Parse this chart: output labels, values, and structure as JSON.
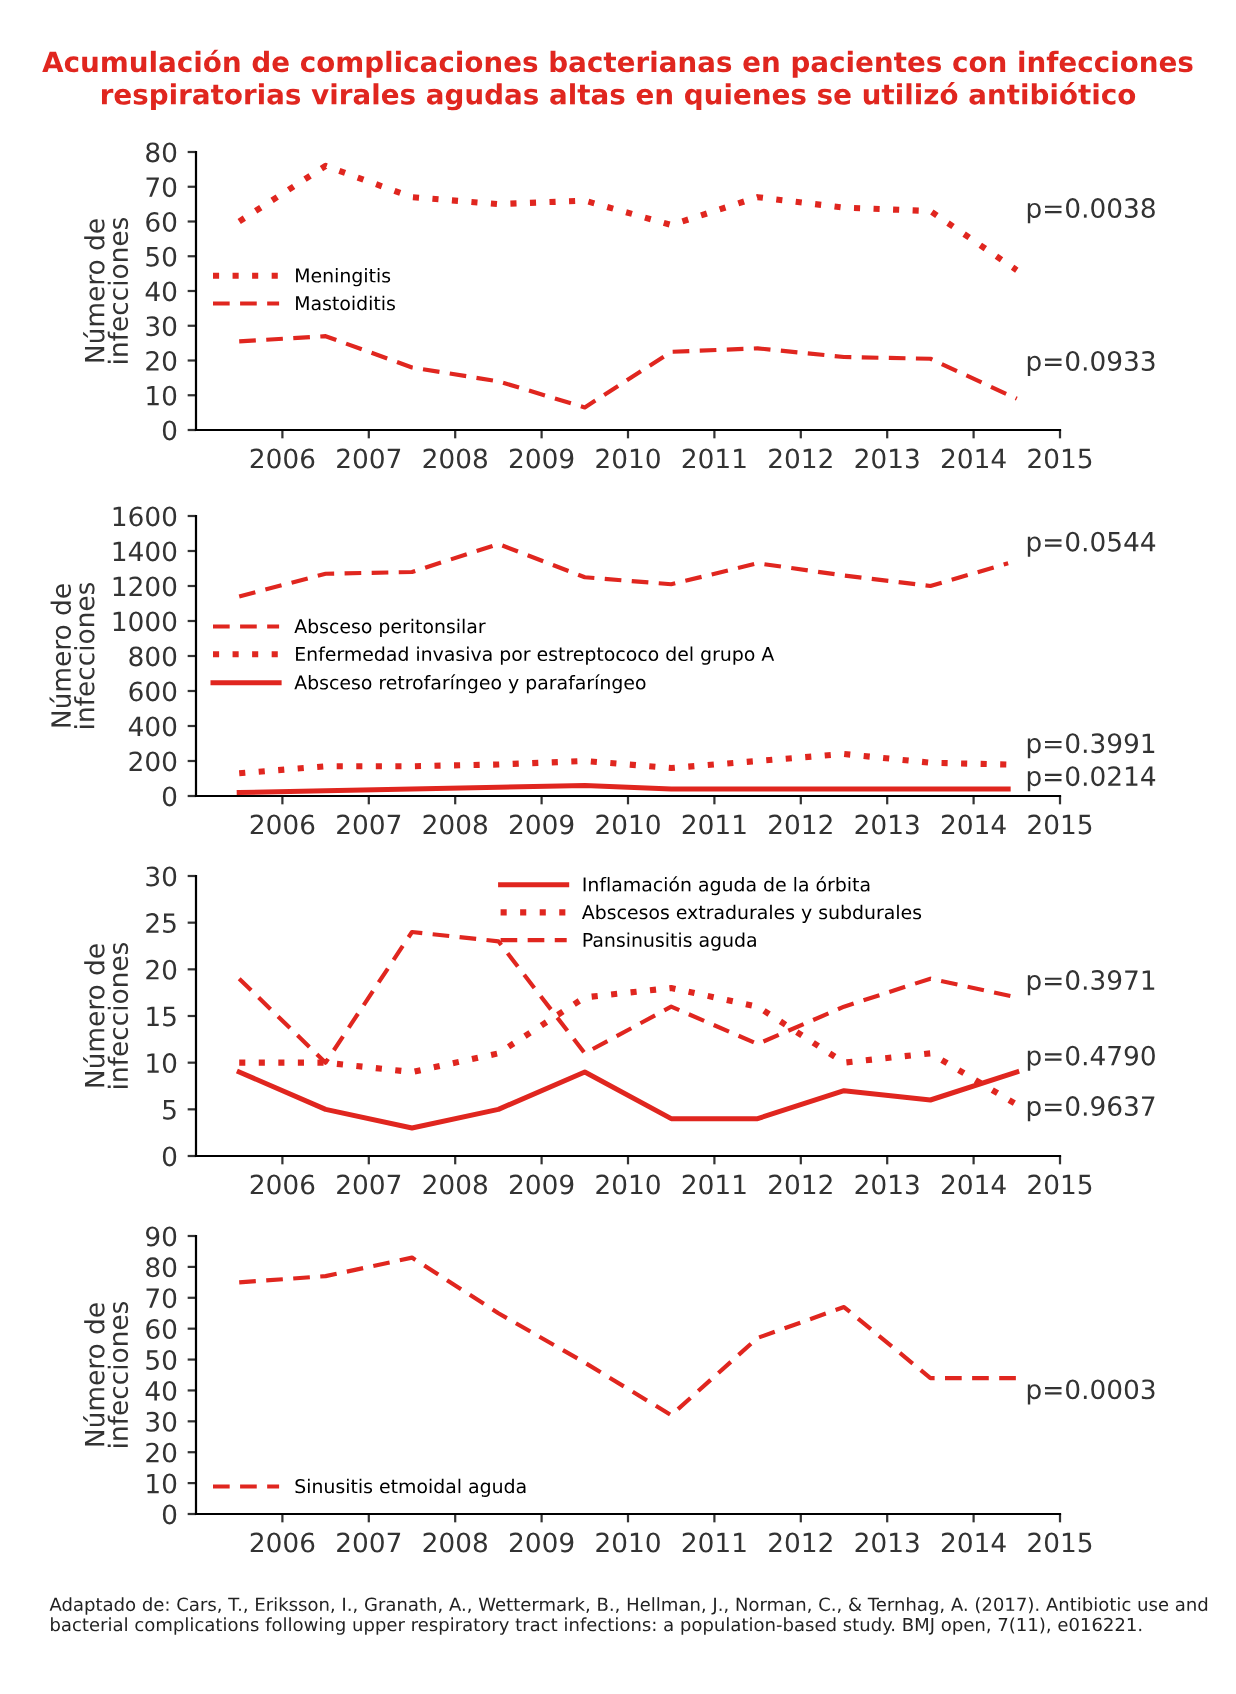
{
  "chart_data": [
    {
      "type": "line",
      "title": "Acumulación de complicaciones bacterianas en pacientes con infecciones respiratorias virales agudas altas en quienes se utilizó antibiótico",
      "ylabel": "Número de\ninfecciones",
      "x": [
        2005.5,
        2006.5,
        2007.5,
        2008.5,
        2009.5,
        2010.5,
        2011.5,
        2012.5,
        2013.5,
        2014.5
      ],
      "xlim": [
        2005,
        2015
      ],
      "xticks": [
        2006,
        2007,
        2008,
        2009,
        2010,
        2011,
        2012,
        2013,
        2014,
        2015
      ],
      "ylim": [
        0,
        80
      ],
      "yticks": [
        0,
        10,
        20,
        30,
        40,
        50,
        60,
        70,
        80
      ],
      "grid": false,
      "legend": "center left",
      "series": [
        {
          "name": "Meningitis",
          "color": "#e0261f",
          "line_style": "dotted",
          "values": [
            60,
            76,
            67,
            65,
            66,
            59,
            67,
            64,
            63,
            46
          ]
        },
        {
          "name": "Mastoiditis",
          "color": "#e0261f",
          "line_style": "dashed",
          "values": [
            25.5,
            27,
            18,
            14,
            6.5,
            22.5,
            23.5,
            21,
            20.5,
            9
          ]
        }
      ],
      "annotations": [
        "p=0.0038",
        "p=0.0933"
      ]
    },
    {
      "type": "line",
      "ylabel": "Número de\ninfecciones",
      "x": [
        2005.5,
        2006.5,
        2007.5,
        2008.5,
        2009.5,
        2010.5,
        2011.5,
        2012.5,
        2013.5,
        2014.4
      ],
      "xlim": [
        2005,
        2015
      ],
      "xticks": [
        2006,
        2007,
        2008,
        2009,
        2010,
        2011,
        2012,
        2013,
        2014,
        2015
      ],
      "ylim": [
        0,
        1600
      ],
      "yticks": [
        0,
        200,
        400,
        600,
        800,
        1000,
        1200,
        1400,
        1600
      ],
      "grid": false,
      "legend": "center left",
      "series": [
        {
          "name": "Absceso peritonsilar",
          "color": "#e0261f",
          "line_style": "dashed",
          "values": [
            1140,
            1270,
            1280,
            1440,
            1250,
            1210,
            1330,
            1260,
            1200,
            1330
          ]
        },
        {
          "name": "Enfermedad invasiva por estreptococo del grupo A",
          "color": "#e0261f",
          "line_style": "dotted",
          "values": [
            130,
            170,
            170,
            180,
            200,
            160,
            200,
            240,
            190,
            180
          ]
        },
        {
          "name": "Absceso retrofaríngeo y parafaríngeo",
          "color": "#e0261f",
          "line_style": "solid",
          "values": [
            20,
            30,
            40,
            50,
            60,
            40,
            40,
            40,
            40,
            40
          ]
        }
      ],
      "annotations": [
        "p=0.0544",
        "p=0.3991",
        "p=0.0214"
      ]
    },
    {
      "type": "line",
      "ylabel": "Número de\ninfecciones",
      "x": [
        2005.5,
        2006.5,
        2007.5,
        2008.5,
        2009.5,
        2010.5,
        2011.5,
        2012.5,
        2013.5,
        2014.5
      ],
      "xlim": [
        2005,
        2015
      ],
      "xticks": [
        2006,
        2007,
        2008,
        2009,
        2010,
        2011,
        2012,
        2013,
        2014,
        2015
      ],
      "ylim": [
        0,
        30
      ],
      "yticks": [
        0,
        5,
        10,
        15,
        20,
        25,
        30
      ],
      "grid": false,
      "legend": "upper right",
      "series": [
        {
          "name": "Inflamación aguda de la órbita",
          "color": "#e0261f",
          "line_style": "solid",
          "values": [
            9,
            5,
            3,
            5,
            9,
            4,
            4,
            7,
            6,
            9
          ]
        },
        {
          "name": "Abscesos extradurales y subdurales",
          "color": "#e0261f",
          "line_style": "dotted",
          "values": [
            10,
            10,
            9,
            11,
            17,
            18,
            16,
            10,
            11,
            5.5
          ]
        },
        {
          "name": "Pansinusitis aguda",
          "color": "#e0261f",
          "line_style": "dashed",
          "values": [
            19,
            10,
            24,
            23,
            11,
            16,
            12,
            16,
            19,
            17
          ]
        }
      ],
      "annotations": [
        "p=0.3971",
        "p=0.4790",
        "p=0.9637"
      ]
    },
    {
      "type": "line",
      "ylabel": "Número de\ninfecciones",
      "x": [
        2005.5,
        2006.5,
        2007.5,
        2008.5,
        2009.5,
        2010.5,
        2011.5,
        2012.5,
        2013.5,
        2014.5
      ],
      "xlim": [
        2005,
        2015
      ],
      "xticks": [
        2006,
        2007,
        2008,
        2009,
        2010,
        2011,
        2012,
        2013,
        2014,
        2015
      ],
      "ylim": [
        0,
        90
      ],
      "yticks": [
        0,
        10,
        20,
        30,
        40,
        50,
        60,
        70,
        80,
        90
      ],
      "grid": false,
      "legend": "lower left",
      "series": [
        {
          "name": "Sinusitis etmoidal aguda",
          "color": "#e0261f",
          "line_style": "dashed",
          "values": [
            75,
            77,
            83,
            65,
            49,
            32,
            57,
            67,
            44,
            44
          ]
        }
      ],
      "annotations": [
        "p=0.0003",
        "Adaptado de: Cars, T., Eriksson, I., Granath, A., Wettermark, B., Hellman, J., Norman, C., & Ternhag, A. (2017). Antibiotic use and bacterial complications following upper respiratory tract infections: a population-based study. BMJ open, 7(11), e016221."
      ]
    }
  ]
}
